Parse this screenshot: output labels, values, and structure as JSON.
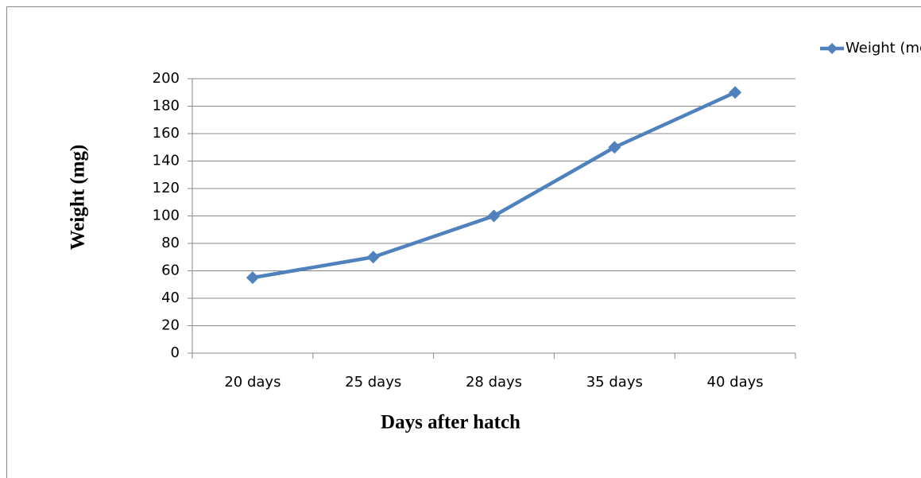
{
  "chart_data": {
    "type": "line",
    "xlabel": "Days after hatch",
    "ylabel": "Weight (mg)",
    "categories": [
      "20 days",
      "25 days",
      "28 days",
      "35 days",
      "40 days"
    ],
    "series": [
      {
        "name": "Weight (mg)",
        "color": "#4f81bd",
        "values": [
          55,
          70,
          100,
          150,
          190
        ]
      }
    ],
    "ylim": [
      0,
      200
    ],
    "yticks": [
      0,
      20,
      40,
      60,
      80,
      100,
      120,
      140,
      160,
      180,
      200
    ],
    "grid": true,
    "legend": "top-right"
  }
}
